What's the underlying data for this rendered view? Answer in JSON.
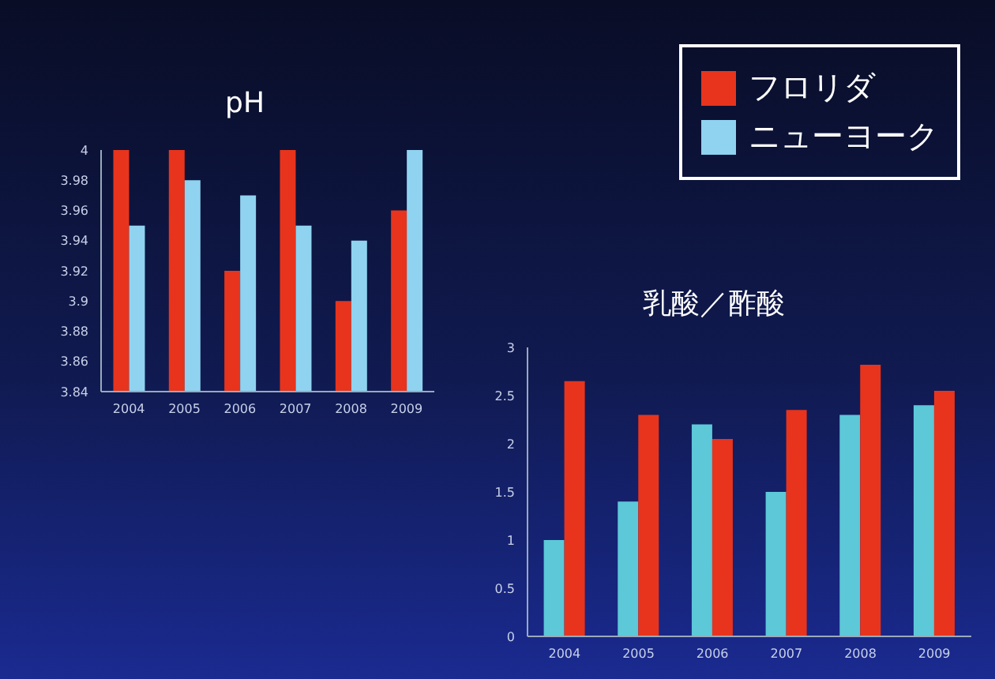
{
  "chart_data": [
    {
      "type": "bar",
      "title": "pH",
      "categories": [
        "2004",
        "2005",
        "2006",
        "2007",
        "2008",
        "2009"
      ],
      "series": [
        {
          "name": "フロリダ",
          "color": "#e8341c",
          "values": [
            4,
            4,
            3.92,
            4,
            3.9,
            3.96
          ]
        },
        {
          "name": "ニューヨーク",
          "color": "#8fd3f0",
          "values": [
            3.95,
            3.98,
            3.97,
            3.95,
            3.94,
            4
          ]
        }
      ],
      "ylim": [
        3.84,
        4
      ],
      "yticks": [
        3.84,
        3.86,
        3.88,
        3.9,
        3.92,
        3.94,
        3.96,
        3.98,
        4
      ],
      "grid": false,
      "legend": "top right"
    },
    {
      "type": "bar",
      "title": "乳酸／酢酸",
      "categories": [
        "2004",
        "2005",
        "2006",
        "2007",
        "2008",
        "2009"
      ],
      "series": [
        {
          "color": "#5cc8d8",
          "values": [
            1,
            1.4,
            2.2,
            1.5,
            2.3,
            2.4
          ]
        },
        {
          "color": "#e8341c",
          "values": [
            2.65,
            2.3,
            2.05,
            2.35,
            2.82,
            2.55
          ]
        }
      ],
      "ylim": [
        0,
        3
      ],
      "yticks": [
        0,
        0.5,
        1,
        1.5,
        2,
        2.5,
        3
      ],
      "grid": false
    }
  ]
}
